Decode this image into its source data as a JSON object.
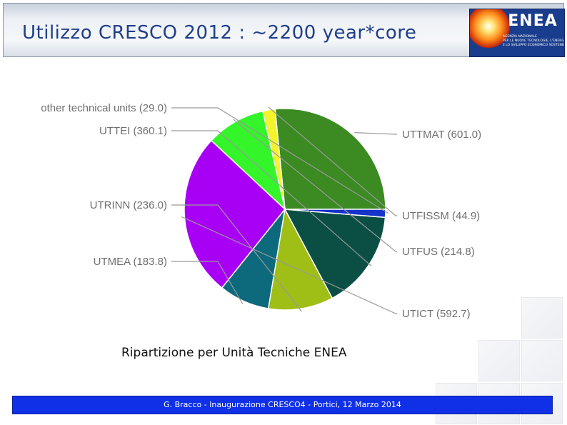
{
  "slide": {
    "title": "Utilizzo CRESCO 2012 : ~2200 year*core",
    "caption": "Ripartizione per Unità Tecniche ENEA",
    "footer": "G. Bracco - Inaugurazione CRESCO4 - Portici, 12 Marzo 2014"
  },
  "logo": {
    "wordmark": "ENEA",
    "lines": [
      "AGENZIA NAZIONALE",
      "PER LE NUOVE TECNOLOGIE, L'ENERGIA",
      "E LO SVILUPPO ECONOMICO SOSTENIBILE"
    ]
  },
  "chart_data": {
    "type": "pie",
    "title": "",
    "slices": [
      {
        "label": "UTTMAT (601.0)",
        "name": "UTTMAT",
        "value": 601.0,
        "color": "#3b8a22"
      },
      {
        "label": "UTFISSM (44.9)",
        "name": "UTFISSM",
        "value": 44.9,
        "color": "#f3f42a"
      },
      {
        "label": "UTFUS (214.8)",
        "name": "UTFUS",
        "value": 214.8,
        "color": "#33f52a"
      },
      {
        "label": "UTICT (592.7)",
        "name": "UTICT",
        "value": 592.7,
        "color": "#a800f5"
      },
      {
        "label": "UTMEA (183.8)",
        "name": "UTMEA",
        "value": 183.8,
        "color": "#0c6a7c"
      },
      {
        "label": "UTRINN (236.0)",
        "name": "UTRINN",
        "value": 236.0,
        "color": "#9fbe16"
      },
      {
        "label": "UTTEI (360.1)",
        "name": "UTTEI",
        "value": 360.1,
        "color": "#0b4f44"
      },
      {
        "label": "other technical units (29.0)",
        "name": "other technical units",
        "value": 29.0,
        "color": "#1533c9"
      }
    ]
  }
}
